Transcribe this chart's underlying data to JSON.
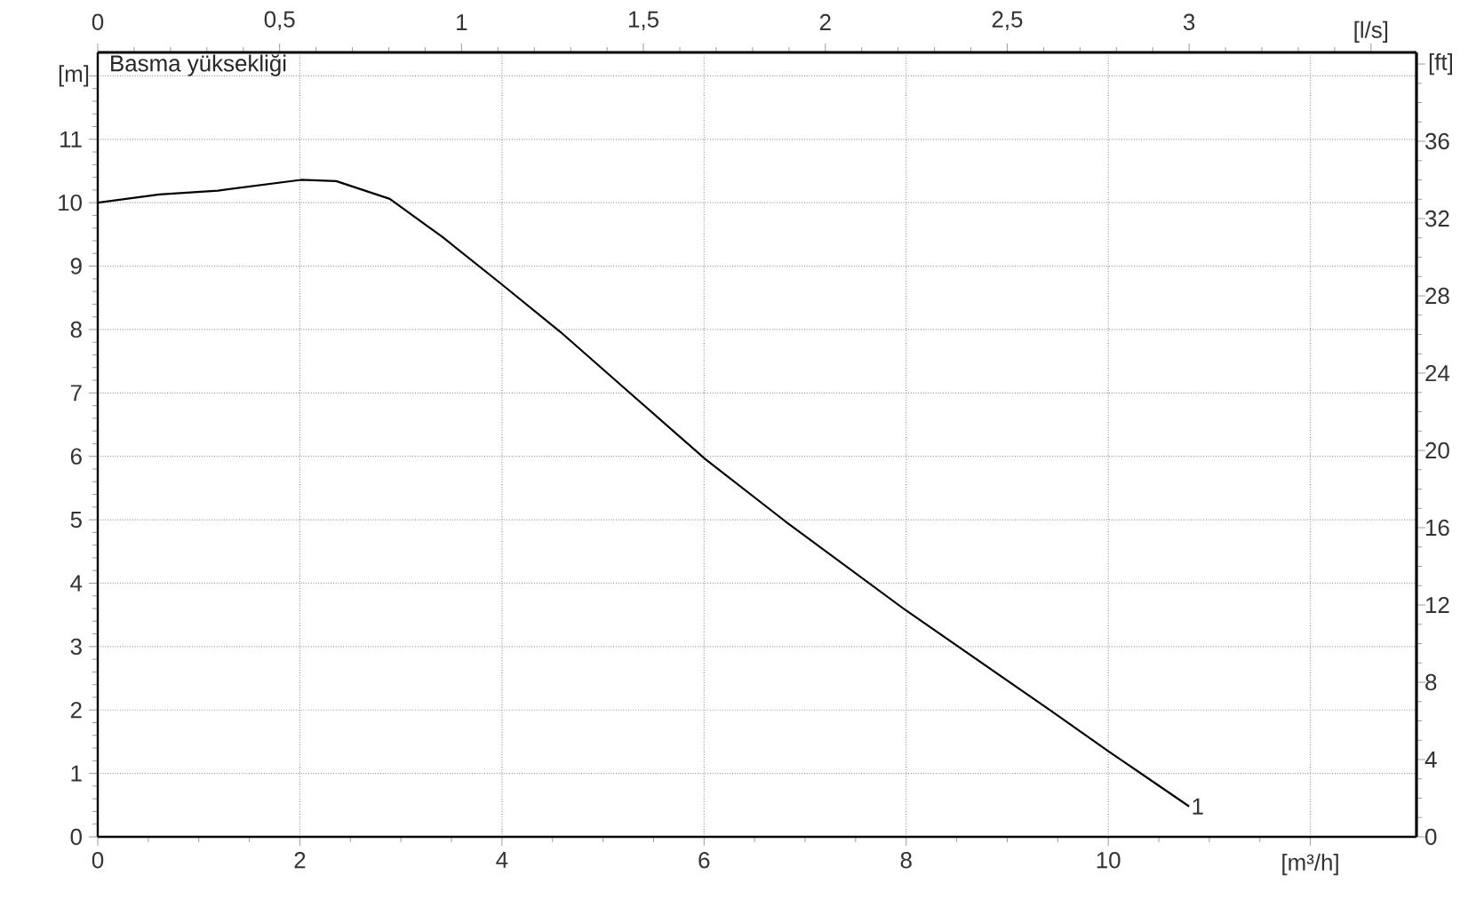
{
  "chart_data": {
    "type": "line",
    "title": "Basma yüksekliği",
    "xlabel": "[m³/h]",
    "ylabel": "[m]",
    "x2label": "[l/s]",
    "y2label": "[ft]",
    "xlim": [
      0,
      13.05
    ],
    "ylim": [
      0,
      12.37
    ],
    "x2lim": [
      0,
      3.625
    ],
    "y2lim": [
      0,
      40.6
    ],
    "xticks": [
      0,
      2,
      4,
      6,
      8,
      10,
      {
        "value": 12,
        "label": null
      }
    ],
    "yticks": [
      0,
      1,
      2,
      3,
      4,
      5,
      6,
      7,
      8,
      9,
      10,
      11,
      {
        "value": 12,
        "label": null
      }
    ],
    "x2ticks": [
      0,
      {
        "value": 0.5,
        "label": "0,5"
      },
      1,
      {
        "value": 1.5,
        "label": "1,5"
      },
      2,
      {
        "value": 2.5,
        "label": "2,5"
      },
      3,
      {
        "value": 3.5,
        "label": null
      }
    ],
    "y2ticks": [
      0,
      4,
      8,
      12,
      16,
      20,
      24,
      28,
      32,
      36,
      {
        "value": 40,
        "label": null
      }
    ],
    "grid": true,
    "marker": "none",
    "line_style": "solid",
    "series": [
      {
        "color": "#000000",
        "x": [
          0,
          0.61,
          1.19,
          2.01,
          2.36,
          2.89,
          3.41,
          4.0,
          4.58,
          5.28,
          6.01,
          6.8,
          7.99,
          9.43,
          10.01,
          10.8
        ],
        "values": [
          10.0,
          10.13,
          10.19,
          10.36,
          10.34,
          10.06,
          9.46,
          8.71,
          7.96,
          6.98,
          5.96,
          4.98,
          3.58,
          1.99,
          1.34,
          0.48
        ]
      }
    ],
    "annotations": [
      {
        "text": "1",
        "x": 10.8,
        "y": 0.48
      }
    ]
  }
}
